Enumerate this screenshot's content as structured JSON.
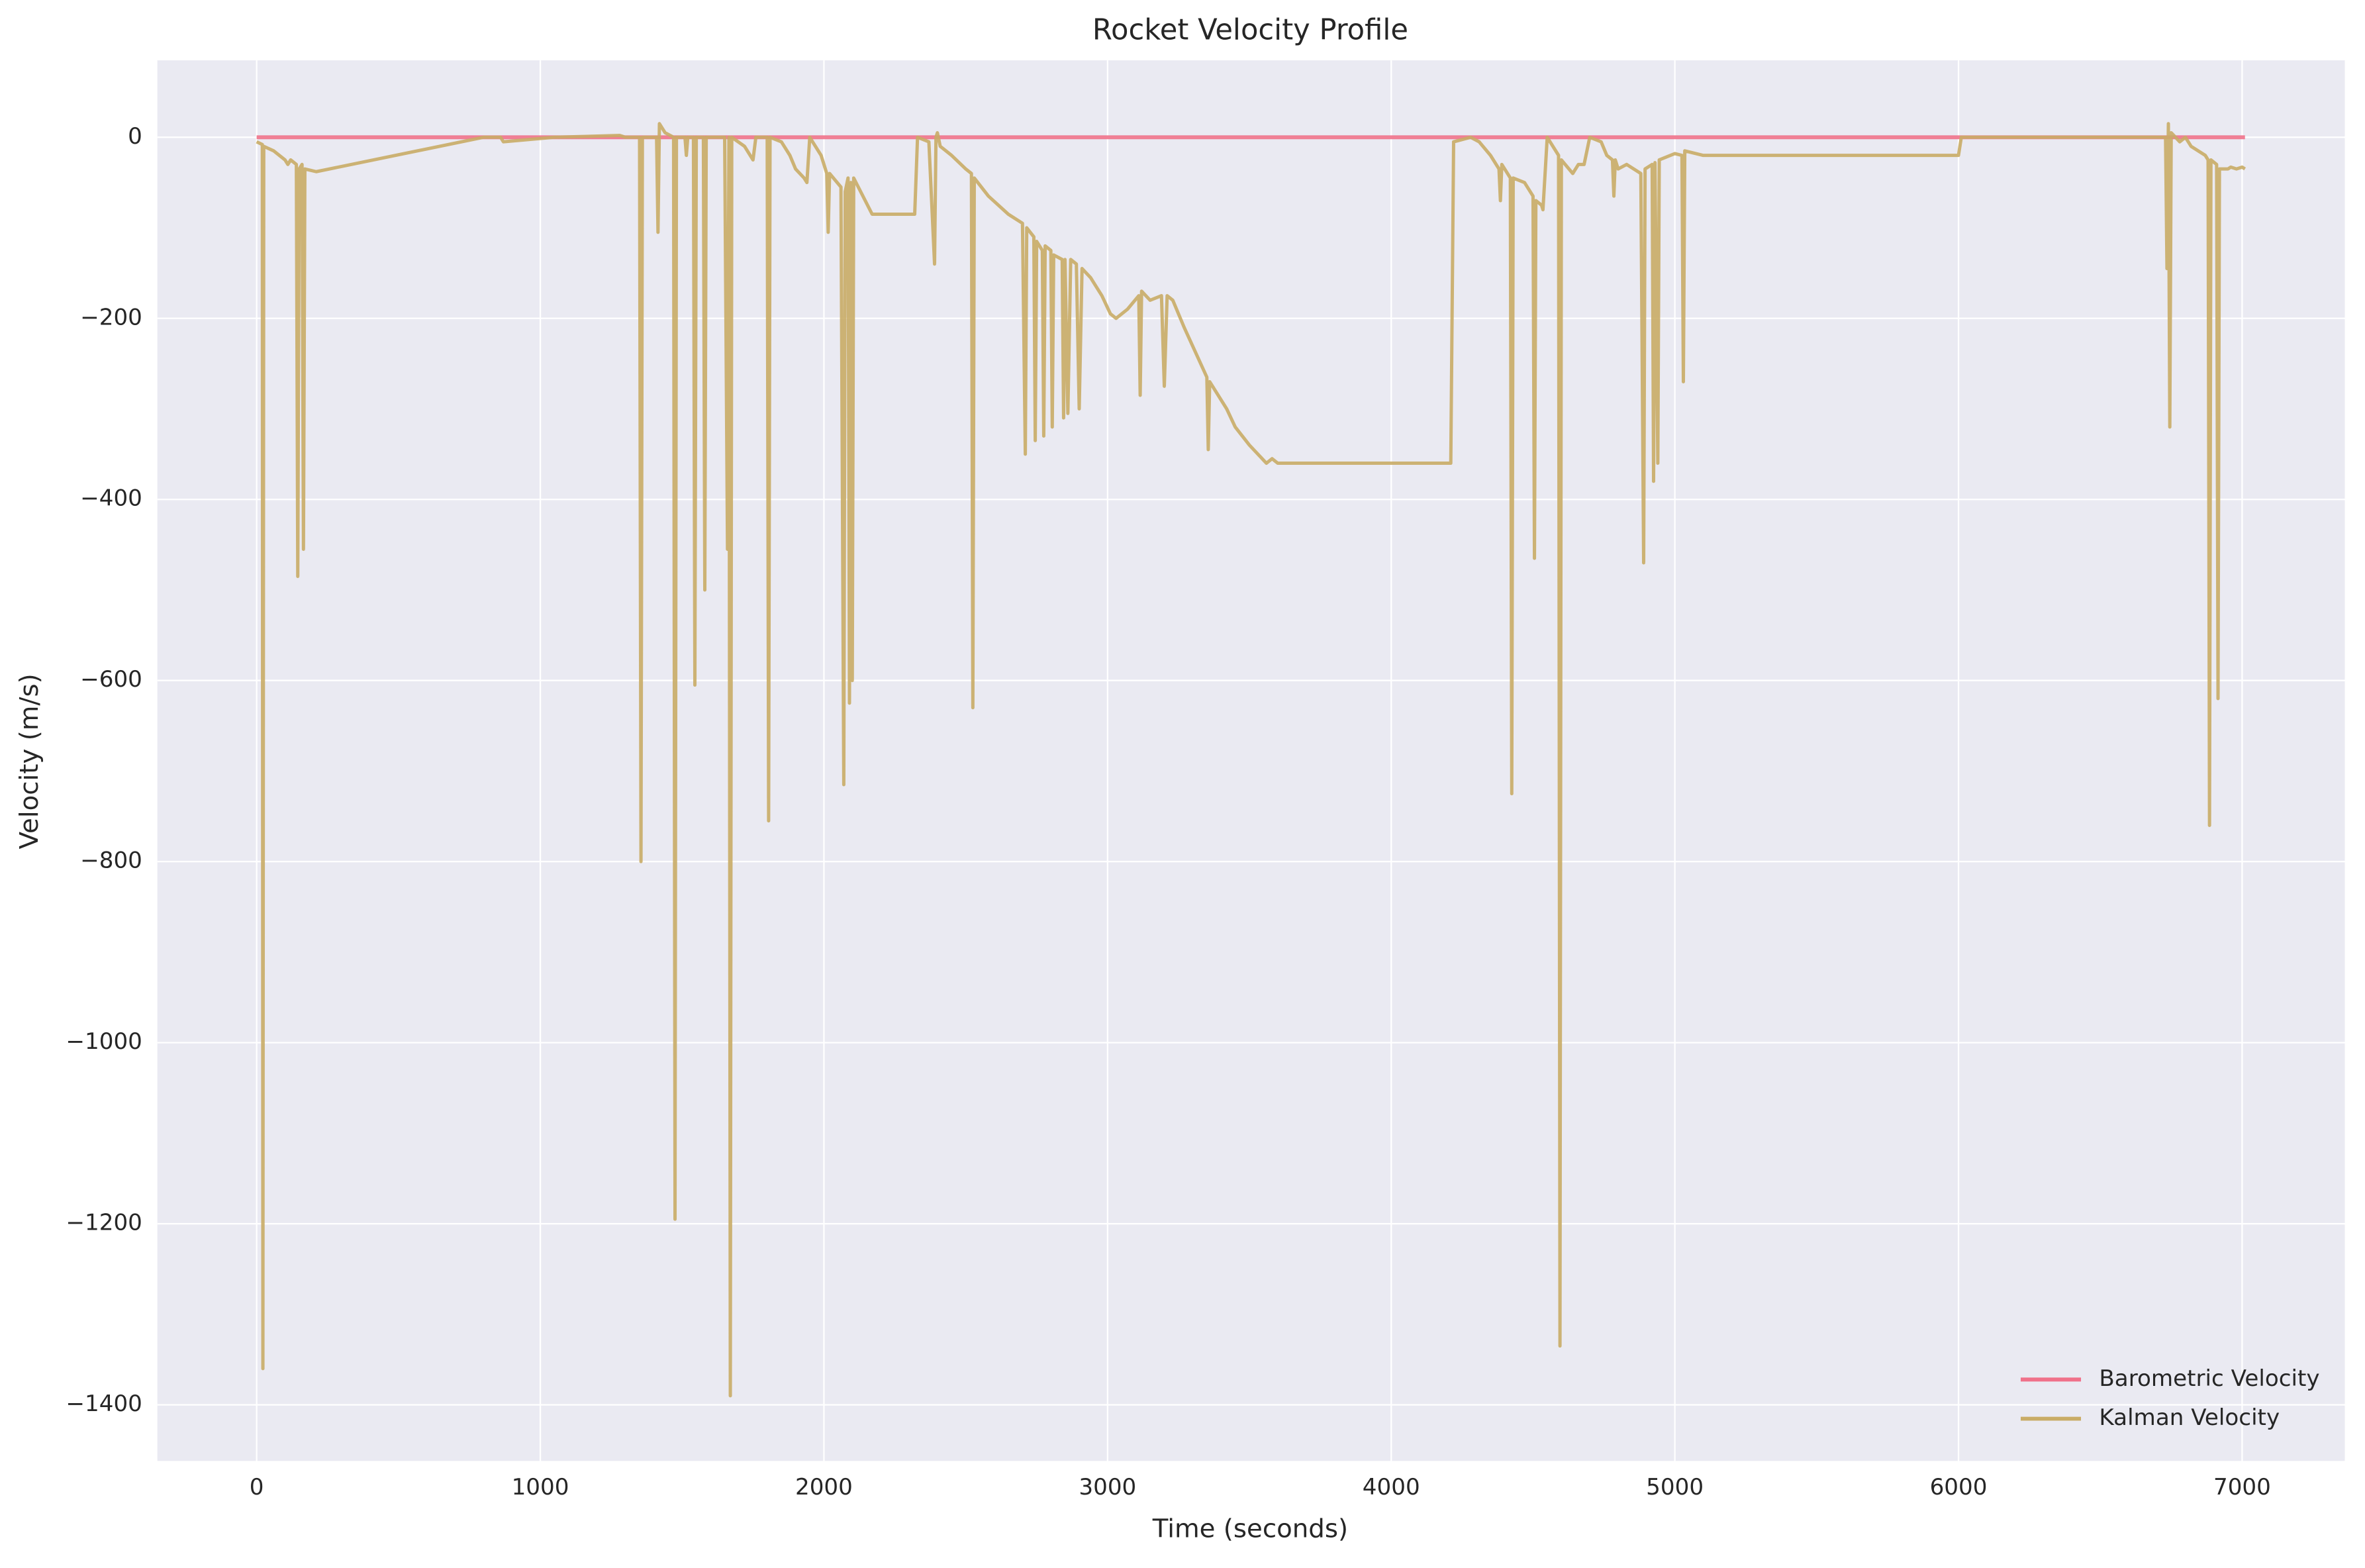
{
  "chart_data": {
    "type": "line",
    "title": "Rocket Velocity Profile",
    "x_label": "Time (seconds)",
    "y_label": "Velocity (m/s)",
    "xlim": [
      -350,
      7362
    ],
    "ylim": [
      -1462,
      85
    ],
    "xticks": [
      0,
      1000,
      2000,
      3000,
      4000,
      5000,
      6000,
      7000
    ],
    "yticks": [
      0,
      {
        "value": -200,
        "label": "−200"
      },
      {
        "value": -400,
        "label": "−400"
      },
      {
        "value": -600,
        "label": "−600"
      },
      {
        "value": -800,
        "label": "−800"
      },
      {
        "value": -1000,
        "label": "−1000"
      },
      {
        "value": -1200,
        "label": "−1200"
      },
      {
        "value": -1400,
        "label": "−1400"
      }
    ],
    "grid": true,
    "legend": "lower right",
    "series": [
      {
        "name": "Barometric Velocity",
        "color": "#f0718a",
        "x": [
          0,
          7010
        ],
        "values": [
          0,
          0
        ]
      },
      {
        "name": "Kalman Velocity",
        "color": "#c9ac66",
        "x": [
          0,
          20,
          22,
          25,
          60,
          100,
          110,
          120,
          140,
          145,
          150,
          160,
          165,
          170,
          210,
          800,
          860,
          870,
          1050,
          1280,
          1300,
          1350,
          1355,
          1360,
          1410,
          1415,
          1420,
          1440,
          1470,
          1475,
          1480,
          1510,
          1515,
          1520,
          1540,
          1545,
          1550,
          1575,
          1580,
          1585,
          1650,
          1660,
          1665,
          1670,
          1675,
          1720,
          1750,
          1760,
          1800,
          1805,
          1810,
          1850,
          1880,
          1900,
          1930,
          1940,
          1950,
          1990,
          2010,
          2015,
          2020,
          2060,
          2070,
          2075,
          2085,
          2090,
          2095,
          2100,
          2105,
          2170,
          2320,
          2330,
          2370,
          2390,
          2395,
          2400,
          2410,
          2450,
          2500,
          2520,
          2525,
          2530,
          2580,
          2650,
          2700,
          2710,
          2715,
          2740,
          2745,
          2750,
          2770,
          2775,
          2780,
          2800,
          2805,
          2810,
          2840,
          2845,
          2850,
          2860,
          2870,
          2890,
          2900,
          2910,
          2940,
          2960,
          2980,
          3010,
          3030,
          3070,
          3110,
          3115,
          3120,
          3150,
          3190,
          3200,
          3210,
          3230,
          3270,
          3350,
          3355,
          3360,
          3420,
          3450,
          3500,
          3560,
          3580,
          3600,
          4210,
          4220,
          4280,
          4310,
          4350,
          4380,
          4385,
          4390,
          4420,
          4425,
          4430,
          4470,
          4500,
          4505,
          4510,
          4530,
          4535,
          4550,
          4590,
          4595,
          4600,
          4640,
          4660,
          4680,
          4700,
          4740,
          4760,
          4780,
          4785,
          4790,
          4800,
          4830,
          4880,
          4890,
          4895,
          4920,
          4925,
          4930,
          4940,
          4945,
          5000,
          5025,
          5030,
          5035,
          5100,
          6000,
          6010,
          6500,
          6730,
          6735,
          6740,
          6745,
          6750,
          6780,
          6800,
          6820,
          6870,
          6880,
          6885,
          6890,
          6910,
          6915,
          6920,
          6950,
          6960,
          6980,
          7000,
          7010
        ],
        "values": [
          -5,
          -8,
          -1360,
          -10,
          -15,
          -25,
          -30,
          -25,
          -30,
          -485,
          -35,
          -30,
          -455,
          -35,
          -38,
          0,
          0,
          -5,
          0,
          2,
          0,
          0,
          -800,
          0,
          0,
          -105,
          15,
          5,
          0,
          -1195,
          0,
          0,
          -20,
          0,
          0,
          -605,
          0,
          0,
          -500,
          0,
          0,
          -455,
          0,
          -1390,
          0,
          -10,
          -25,
          0,
          0,
          -755,
          0,
          -5,
          -20,
          -35,
          -45,
          -50,
          0,
          -20,
          -40,
          -105,
          -40,
          -55,
          -715,
          -60,
          -45,
          -625,
          -50,
          -600,
          -45,
          -85,
          -85,
          0,
          -5,
          -140,
          0,
          5,
          -10,
          -20,
          -35,
          -40,
          -630,
          -45,
          -65,
          -85,
          -95,
          -350,
          -100,
          -110,
          -335,
          -115,
          -125,
          -330,
          -120,
          -125,
          -320,
          -130,
          -135,
          -310,
          -135,
          -305,
          -135,
          -140,
          -300,
          -145,
          -155,
          -165,
          -175,
          -195,
          -200,
          -190,
          -175,
          -285,
          -170,
          -180,
          -175,
          -275,
          -175,
          -180,
          -210,
          -265,
          -345,
          -270,
          -300,
          -320,
          -340,
          -360,
          -355,
          -360,
          -360,
          -5,
          0,
          -5,
          -20,
          -35,
          -70,
          -30,
          -45,
          -725,
          -45,
          -50,
          -65,
          -465,
          -70,
          -75,
          -80,
          0,
          -20,
          -1335,
          -25,
          -40,
          -30,
          -30,
          0,
          -5,
          -20,
          -25,
          -65,
          -25,
          -35,
          -30,
          -40,
          -470,
          -35,
          -30,
          -380,
          -28,
          -360,
          -25,
          -18,
          -20,
          -270,
          -15,
          -20,
          -20,
          0,
          0,
          0,
          -145,
          15,
          -320,
          5,
          -5,
          0,
          -10,
          -20,
          -25,
          -760,
          -25,
          -30,
          -620,
          -35,
          -35,
          -33,
          -35,
          -33,
          -35
        ]
      }
    ]
  }
}
